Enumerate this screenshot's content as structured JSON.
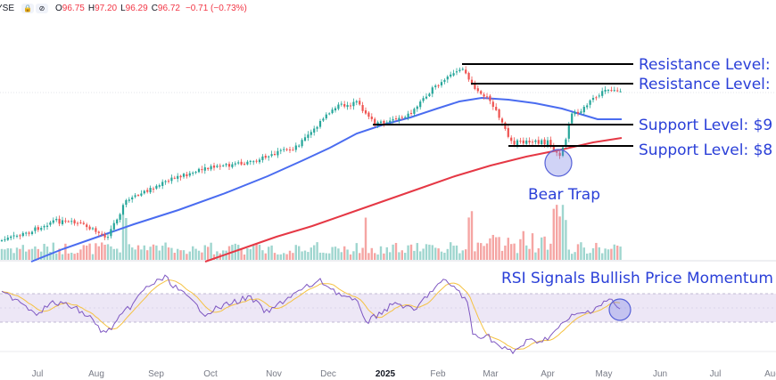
{
  "header": {
    "exchange": "YSE",
    "open_label": "O",
    "open": "96.75",
    "high_label": "H",
    "high": "97.20",
    "low_label": "L",
    "low": "96.29",
    "close_label": "C",
    "close": "96.72",
    "change": "−0.71 (−0.73%)",
    "icons": [
      "lock-icon",
      "eye-off-icon"
    ]
  },
  "colors": {
    "up": "#26a69a",
    "down": "#ef5350",
    "ma_fast": "#4a6cf0",
    "ma_slow": "#e53845",
    "volume_up": "#9fd6cf",
    "volume_down": "#f5a5a3",
    "rsi_line": "#7e57c2",
    "rsi_signal": "#f5c242",
    "rsi_band": "#ede7f6",
    "annotation": "#2a3fd8"
  },
  "chart_data": {
    "type": "candlestick",
    "x_axis_labels": [
      "Jul",
      "Aug",
      "Sep",
      "Oct",
      "Nov",
      "Dec",
      "2025",
      "Feb",
      "Mar",
      "Apr",
      "May",
      "Jun",
      "Jul",
      "Aug"
    ],
    "annotations": {
      "resistance_1": "Resistance Level:",
      "resistance_2": "Resistance Level:",
      "support_1": "Support Level: $9",
      "support_2": "Support Level: $8",
      "bear_trap": "Bear Trap",
      "rsi_note": "RSI Signals Bullish Price Momentum"
    },
    "horizontal_levels": [
      "resistance_1",
      "resistance_2",
      "support_1",
      "support_2"
    ],
    "series": [
      {
        "type": "candles",
        "source": "approximate shape read from chart"
      },
      {
        "type": "moving_average_fast"
      },
      {
        "type": "moving_average_slow"
      },
      {
        "type": "volume"
      },
      {
        "type": "rsi"
      }
    ],
    "grid": false
  }
}
